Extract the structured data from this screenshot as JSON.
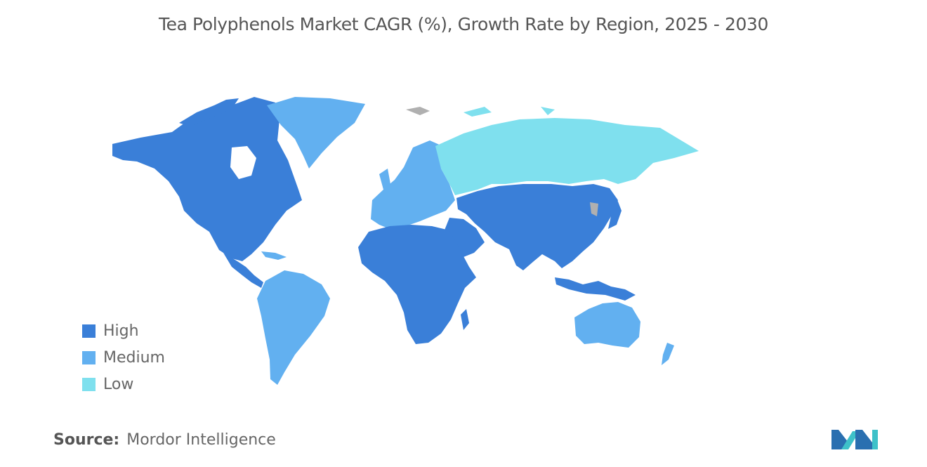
{
  "title": "Tea Polyphenols Market CAGR (%), Growth Rate by Region, 2025 - 2030",
  "legend": [
    {
      "label": "High",
      "color": "#3a7fd8"
    },
    {
      "label": "Medium",
      "color": "#62b0f0"
    },
    {
      "label": "Low",
      "color": "#7fe0ee"
    }
  ],
  "no_data_color": "#b0b0b0",
  "regions": {
    "north_america": "High",
    "central_america": "High",
    "south_america": "Medium",
    "greenland": "Medium",
    "europe": "Medium",
    "russia": "Low",
    "central_asia": "Low",
    "middle_east": "High",
    "africa": "High",
    "south_asia": "High",
    "east_asia": "High",
    "southeast_asia": "High",
    "australia_new_zealand": "Medium"
  },
  "source": {
    "label": "Source:",
    "value": "Mordor Intelligence"
  },
  "logo_icon": "mordor-intelligence-logo-icon"
}
